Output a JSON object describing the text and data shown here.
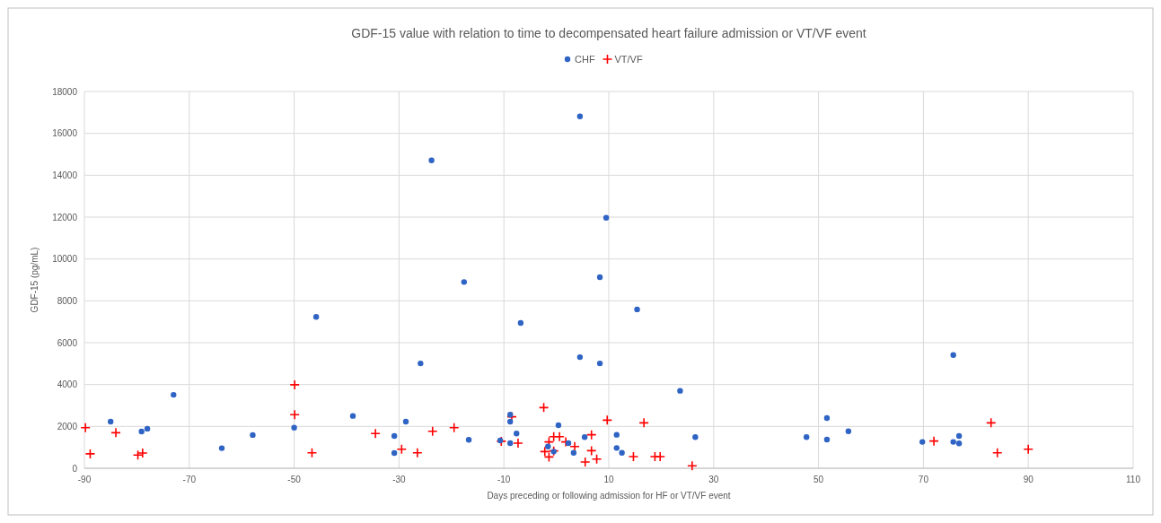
{
  "chart_data": {
    "type": "scatter",
    "title": "GDF-15 value with relation to time to decompensated heart failure admission or VT/VF event",
    "xlabel": "Days preceding or following admission for HF or VT/VF event",
    "ylabel": "GDF-15 (pg/mL)",
    "xlim": [
      -90,
      110
    ],
    "xticks": [
      -90,
      -70,
      -50,
      -30,
      -10,
      10,
      30,
      50,
      70,
      90,
      110
    ],
    "ylim": [
      0,
      18000
    ],
    "yticks": [
      0,
      2000,
      4000,
      6000,
      8000,
      10000,
      12000,
      14000,
      16000,
      18000
    ],
    "grid": true,
    "legend": "top",
    "series": [
      {
        "name": "CHF",
        "color": "#2f64c4",
        "marker": "circle",
        "x": [
          -85,
          -79.1,
          -78,
          -73,
          -63.8,
          -57.9,
          -50,
          -45.8,
          -38.8,
          -30.9,
          -30.9,
          -28.7,
          -25.9,
          -23.8,
          -17.6,
          -16.7,
          -10.7,
          -8.8,
          -8.8,
          -8.8,
          -7.6,
          -6.8,
          -1.6,
          -0.5,
          0.4,
          2.3,
          3.3,
          4.5,
          4.5,
          5.4,
          8.3,
          8.3,
          9.5,
          11.5,
          11.5,
          12.5,
          15.4,
          23.6,
          26.5,
          47.7,
          51.6,
          51.6,
          55.7,
          69.8,
          75.7,
          75.7,
          76.8,
          76.8
        ],
        "values": [
          2230,
          1760,
          1890,
          3510,
          960,
          1590,
          1940,
          7230,
          2500,
          1540,
          730,
          2230,
          5010,
          14710,
          8900,
          1360,
          1330,
          2560,
          2230,
          1200,
          1660,
          6940,
          1040,
          800,
          2060,
          1200,
          740,
          16810,
          5310,
          1490,
          9130,
          5010,
          11970,
          1600,
          970,
          740,
          7590,
          3700,
          1490,
          1490,
          2400,
          1370,
          1770,
          1260,
          5410,
          1260,
          1540,
          1190
        ]
      },
      {
        "name": "VT/VF",
        "color": "#ff0000",
        "marker": "cross",
        "x": [
          -89.8,
          -88.9,
          -84,
          -79.8,
          -78.9,
          -49.9,
          -49.9,
          -46.6,
          -34.5,
          -29.5,
          -26.5,
          -23.6,
          -19.5,
          -10.5,
          -8.5,
          -7.3,
          -2.4,
          -2.2,
          -1.4,
          -1.4,
          -0.5,
          0.6,
          -0.5,
          1.8,
          3.5,
          6.7,
          6.7,
          5.5,
          7.7,
          9.7,
          14.7,
          16.7,
          18.8,
          19.8,
          25.9,
          72,
          82.9,
          84.1,
          90
        ],
        "values": [
          1940,
          690,
          1700,
          630,
          730,
          3990,
          2560,
          740,
          1660,
          910,
          740,
          1770,
          1940,
          1290,
          2460,
          1200,
          2900,
          800,
          1260,
          540,
          1510,
          1510,
          830,
          1260,
          1040,
          1600,
          840,
          300,
          440,
          2300,
          560,
          2170,
          560,
          560,
          120,
          1300,
          2170,
          740,
          910
        ]
      }
    ]
  }
}
